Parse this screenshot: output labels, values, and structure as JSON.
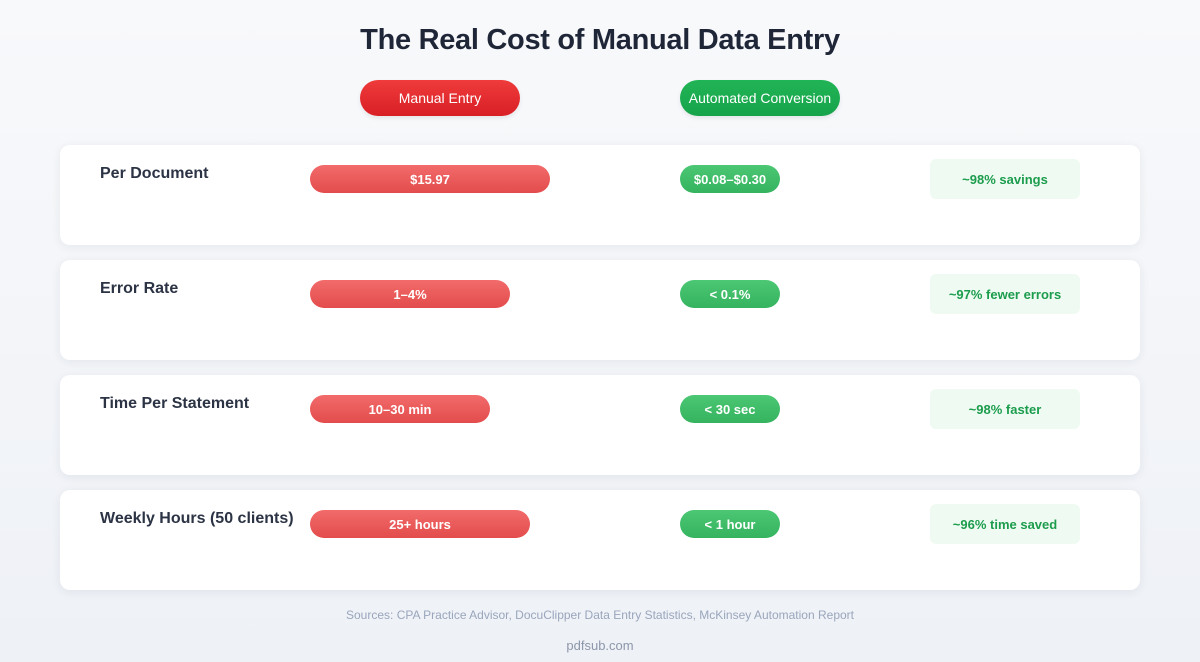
{
  "title": "The Real Cost of Manual Data Entry",
  "legend": {
    "manual": "Manual Entry",
    "automated": "Automated Conversion"
  },
  "colors": {
    "manual": "#e34c4c",
    "automated": "#35b35f",
    "savings_bg": "#effbf2",
    "savings_text": "#1c9c4d"
  },
  "rows": [
    {
      "label": "Per Document",
      "manual": "$15.97",
      "automated": "$0.08–$0.30",
      "savings": "~98% savings"
    },
    {
      "label": "Error Rate",
      "manual": "1–4%",
      "automated": "< 0.1%",
      "savings": "~97% fewer errors"
    },
    {
      "label": "Time Per Statement",
      "manual": "10–30 min",
      "automated": "< 30 sec",
      "savings": "~98% faster"
    },
    {
      "label": "Weekly Hours (50 clients)",
      "manual": "25+ hours",
      "automated": "< 1 hour",
      "savings": "~96% time saved"
    }
  ],
  "chart_data": {
    "type": "bar",
    "title": "The Real Cost of Manual Data Entry",
    "categories": [
      "Per Document",
      "Error Rate",
      "Time Per Statement",
      "Weekly Hours (50 clients)"
    ],
    "series": [
      {
        "name": "Manual Entry",
        "labels": [
          "$15.97",
          "1–4%",
          "10–30 min",
          "25+ hours"
        ]
      },
      {
        "name": "Automated Conversion",
        "labels": [
          "$0.08–$0.30",
          "< 0.1%",
          "< 30 sec",
          "< 1 hour"
        ]
      }
    ],
    "manual_bar_relative": [
      1.0,
      0.833,
      0.75,
      0.917
    ],
    "annotations": [
      "~98% savings",
      "~97% fewer errors",
      "~98% faster",
      "~96% time saved"
    ]
  },
  "footer": {
    "sources": "Sources: CPA Practice Advisor, DocuClipper Data Entry Statistics, McKinsey Automation Report",
    "site": "pdfsub.com"
  }
}
